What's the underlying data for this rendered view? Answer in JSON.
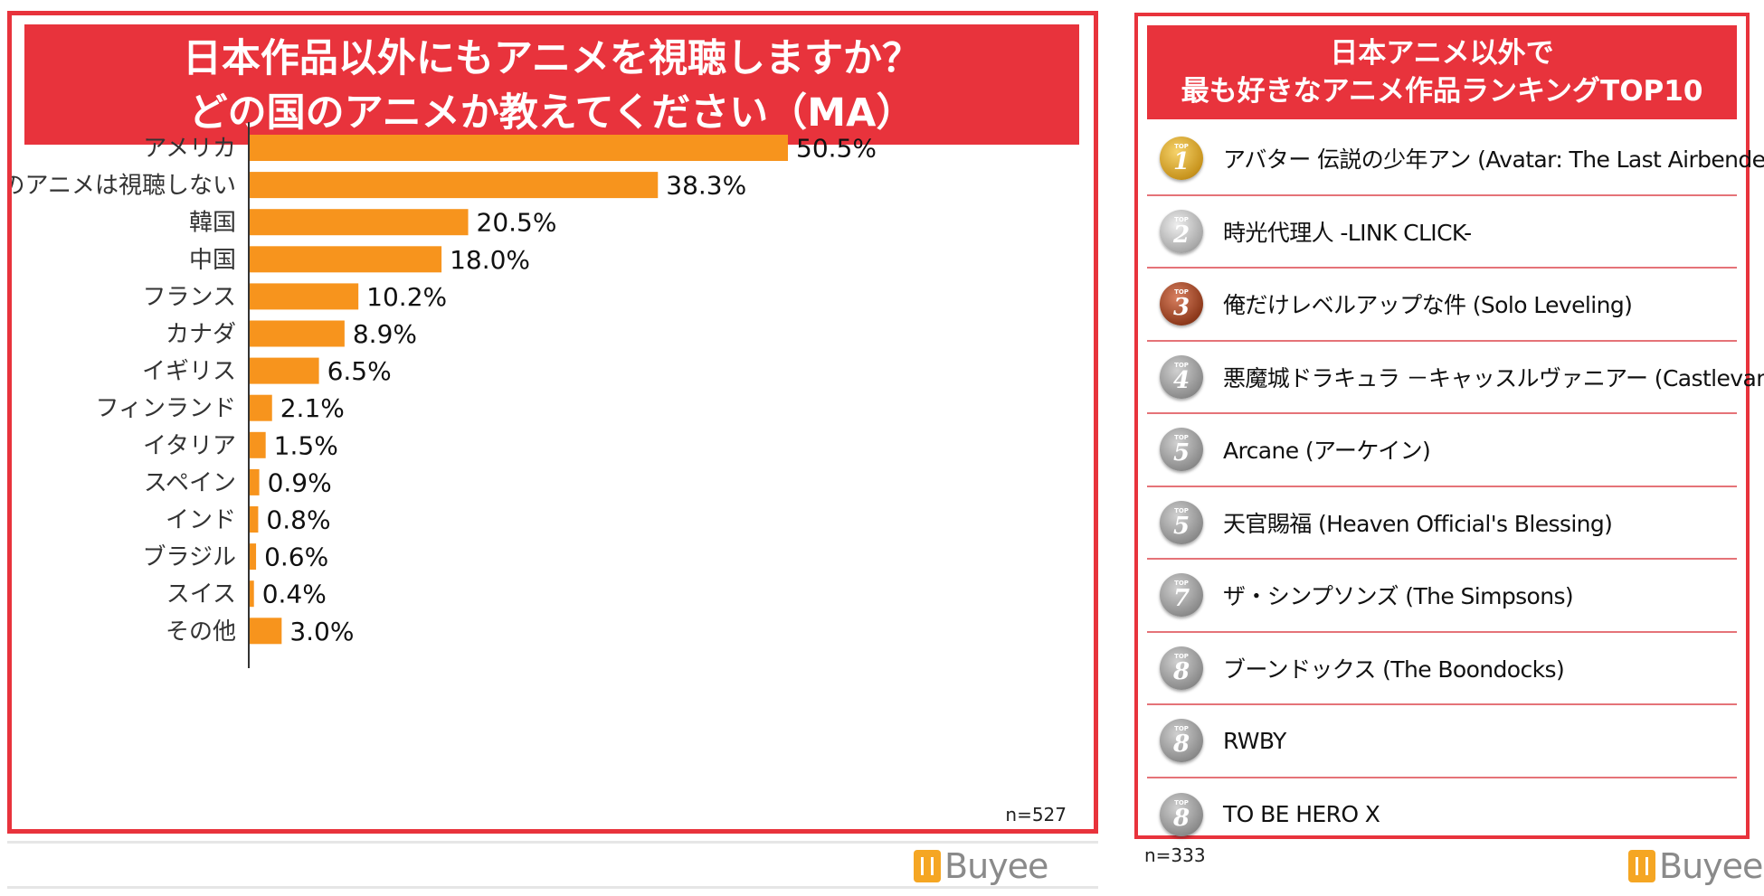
{
  "left": {
    "title_line1": "日本作品以外にもアニメを視聴しますか？",
    "title_line2": "どの国のアニメか教えてください（MA）",
    "n_label": "n=527",
    "logo_text": "Buyee"
  },
  "chart_data": {
    "type": "bar",
    "orientation": "horizontal",
    "categories": [
      "アメリカ",
      "日本以外のアニメは視聴しない",
      "韓国",
      "中国",
      "フランス",
      "カナダ",
      "イギリス",
      "フィンランド",
      "イタリア",
      "スペイン",
      "インド",
      "ブラジル",
      "スイス",
      "その他"
    ],
    "values": [
      50.5,
      38.3,
      20.5,
      18.0,
      10.2,
      8.9,
      6.5,
      2.1,
      1.5,
      0.9,
      0.8,
      0.6,
      0.4,
      3.0
    ],
    "value_labels": [
      "50.5%",
      "38.3%",
      "20.5%",
      "18.0%",
      "10.2%",
      "8.9%",
      "6.5%",
      "2.1%",
      "1.5%",
      "0.9%",
      "0.8%",
      "0.6%",
      "0.4%",
      "3.0%"
    ],
    "xlim": [
      0,
      50.5
    ],
    "bar_color": "#f7941d",
    "grid": false
  },
  "right": {
    "title_line1": "日本アニメ以外で",
    "title_line2": "最も好きなアニメ作品ランキングTOP10",
    "n_label": "n=333",
    "logo_text": "Buyee",
    "medal_top_text": "TOP",
    "items": [
      {
        "rank": "1",
        "medal": "gold",
        "title": "アバター 伝説の少年アン (Avatar: The Last Airbender)"
      },
      {
        "rank": "2",
        "medal": "silver",
        "title": "時光代理人 -LINK CLICK-"
      },
      {
        "rank": "3",
        "medal": "bronze",
        "title": "俺だけレベルアップな件 (Solo Leveling)"
      },
      {
        "rank": "4",
        "medal": "gray",
        "title": "悪魔城ドラキュラ －キャッスルヴァニアー (Castlevania)"
      },
      {
        "rank": "5",
        "medal": "gray",
        "title": "Arcane (アーケイン)"
      },
      {
        "rank": "5",
        "medal": "gray",
        "title": "天官賜福 (Heaven Official's Blessing)"
      },
      {
        "rank": "7",
        "medal": "gray",
        "title": "ザ・シンプソンズ (The Simpsons)"
      },
      {
        "rank": "8",
        "medal": "gray",
        "title": "ブーンドックス (The Boondocks)"
      },
      {
        "rank": "8",
        "medal": "gray",
        "title": "RWBY"
      },
      {
        "rank": "8",
        "medal": "gray",
        "title": "TO BE HERO X"
      }
    ]
  },
  "colors": {
    "accent_red": "#e8333c",
    "bar_orange": "#f7941d",
    "divider": "#e57378"
  }
}
